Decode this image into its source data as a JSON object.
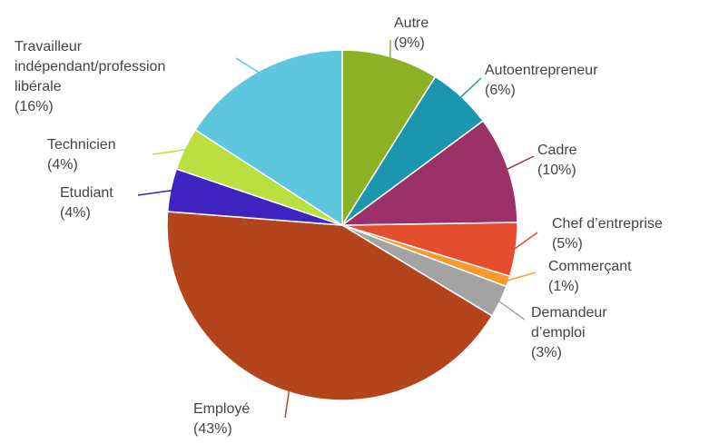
{
  "chart_data": {
    "type": "pie",
    "title": "",
    "start_angle_deg": 0,
    "direction": "clockwise",
    "legend": "none (labels outside with leader lines)",
    "slices": [
      {
        "name": "Autre",
        "value": 9,
        "color": "#8db125",
        "label_lines": [
          "Autre",
          "(9%)"
        ]
      },
      {
        "name": "Autoentrepreneur",
        "value": 6,
        "color": "#1c95ae",
        "label_lines": [
          "Autoentrepreneur",
          "(6%)"
        ]
      },
      {
        "name": "Cadre",
        "value": 10,
        "color": "#9b3167",
        "label_lines": [
          "Cadre",
          "(10%)"
        ]
      },
      {
        "name": "Chef d'entreprise",
        "value": 5,
        "color": "#e54d2f",
        "label_lines": [
          "Chef d’entreprise",
          "(5%)"
        ]
      },
      {
        "name": "Commerçant",
        "value": 1,
        "color": "#f79a2d",
        "label_lines": [
          "Commerçant",
          "(1%)"
        ]
      },
      {
        "name": "Demandeur d'emploi",
        "value": 3,
        "color": "#a3a3a3",
        "label_lines": [
          "Demandeur",
          "d’emploi",
          "(3%)"
        ]
      },
      {
        "name": "Employé",
        "value": 43,
        "color": "#b4441c",
        "label_lines": [
          "Employé",
          "(43%)"
        ]
      },
      {
        "name": "Etudiant",
        "value": 4,
        "color": "#3e23c0",
        "label_lines": [
          "Etudiant",
          "(4%)"
        ]
      },
      {
        "name": "Technicien",
        "value": 4,
        "color": "#b9e03e",
        "label_lines": [
          "Technicien",
          "(4%)"
        ]
      },
      {
        "name": "Travailleur indépendant/profession libérale",
        "value": 16,
        "color": "#5cc7df",
        "label_lines": [
          "Travailleur",
          "indépendant/profession",
          "libérale",
          "(16%)"
        ]
      }
    ]
  }
}
